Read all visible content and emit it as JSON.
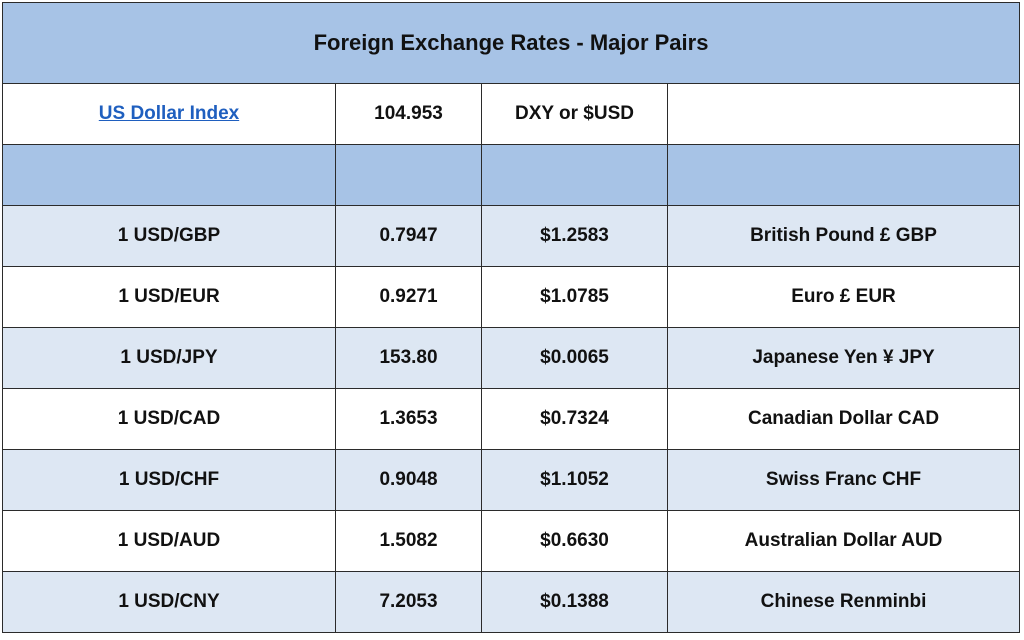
{
  "header": {
    "title": "Foreign Exchange Rates - Major Pairs"
  },
  "index_row": {
    "label": "US Dollar Index",
    "value": "104.953",
    "symbol": "DXY or $USD"
  },
  "table": {
    "rows": [
      [
        "1 USD/GBP",
        "0.7947",
        "$1.2583",
        "British Pound £ GBP"
      ],
      [
        "1 USD/EUR",
        "0.9271",
        "$1.0785",
        "Euro £ EUR"
      ],
      [
        "1 USD/JPY",
        "153.80",
        "$0.0065",
        "Japanese Yen ¥ JPY"
      ],
      [
        "1 USD/CAD",
        "1.3653",
        "$0.7324",
        "Canadian Dollar CAD"
      ],
      [
        "1 USD/CHF",
        "0.9048",
        "$1.1052",
        "Swiss Franc CHF"
      ],
      [
        "1 USD/AUD",
        "1.5082",
        "$0.6630",
        "Australian Dollar AUD"
      ],
      [
        "1 USD/CNY",
        "7.2053",
        "$0.1388",
        "Chinese Renminbi"
      ]
    ]
  }
}
